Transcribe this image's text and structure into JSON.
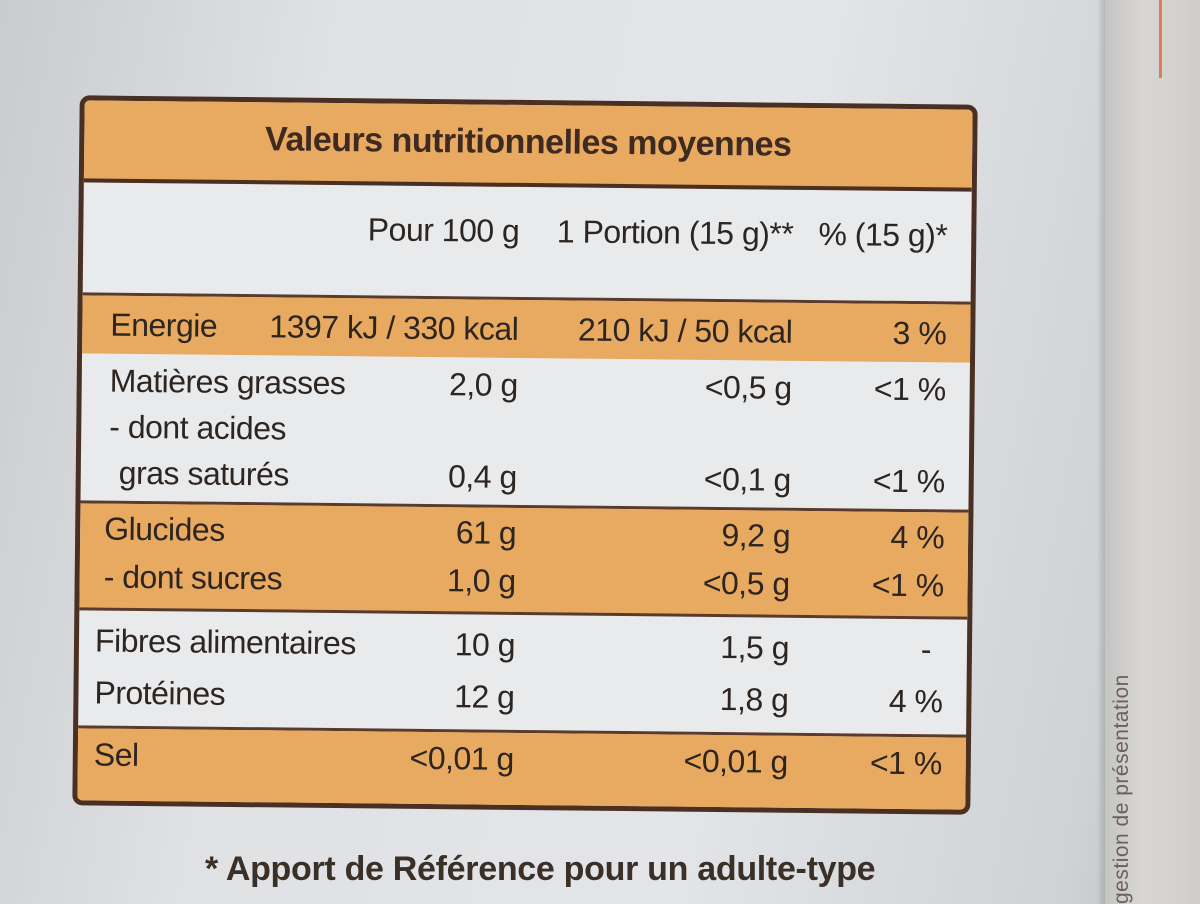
{
  "table": {
    "title": "Valeurs nutritionnelles moyennes",
    "columns": [
      "Pour 100 g",
      "1 Portion (15 g)**",
      "% (15 g)*"
    ],
    "rows": [
      {
        "label": "Energie",
        "per100": "1397 kJ / 330 kcal",
        "portion": "210 kJ / 50 kcal",
        "pct": "3 %"
      },
      {
        "label": "Matières grasses",
        "per100": "2,0 g",
        "portion": "<0,5 g",
        "pct": "<1 %"
      },
      {
        "label": "- dont acides",
        "per100": "",
        "portion": "",
        "pct": ""
      },
      {
        "label": "gras saturés",
        "per100": "0,4 g",
        "portion": "<0,1 g",
        "pct": "<1 %"
      },
      {
        "label": "Glucides",
        "per100": "61 g",
        "portion": "9,2 g",
        "pct": "4 %"
      },
      {
        "label": "- dont sucres",
        "per100": "1,0 g",
        "portion": "<0,5 g",
        "pct": "<1 %"
      },
      {
        "label": "Fibres alimentaires",
        "per100": "10 g",
        "portion": "1,5 g",
        "pct": "-"
      },
      {
        "label": "Protéines",
        "per100": "12 g",
        "portion": "1,8 g",
        "pct": "4 %"
      },
      {
        "label": "Sel",
        "per100": "<0,01 g",
        "portion": "<0,01 g",
        "pct": "<1 %"
      }
    ]
  },
  "footnote": "* Apport de Référence pour un adulte-type",
  "side_text": "gestion de présentation",
  "colors": {
    "band": "#e8a960",
    "border": "#4a3023",
    "paper": "#e3e5e8"
  }
}
